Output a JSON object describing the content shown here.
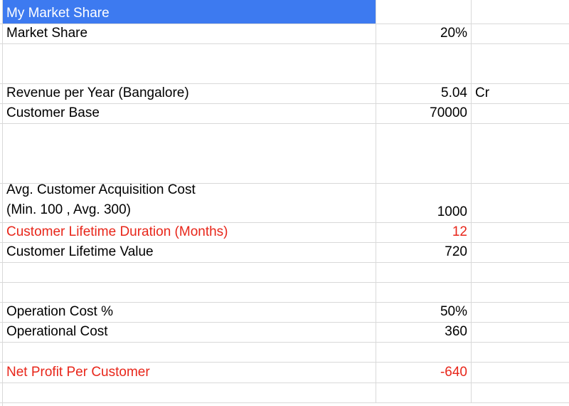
{
  "rows": {
    "market_share_header": {
      "label": "My Market Share"
    },
    "market_share": {
      "label": "Market Share",
      "value": "20%"
    },
    "revenue": {
      "label": "Revenue per Year (Bangalore)",
      "value": "5.04",
      "unit": "Cr"
    },
    "customer_base": {
      "label": "Customer Base",
      "value": "70000"
    },
    "cac": {
      "label_line1": "Avg. Customer Acquisition Cost",
      "label_line2": "(Min. 100 , Avg. 300)",
      "value": "1000"
    },
    "lifetime_duration": {
      "label": "Customer Lifetime Duration (Months)",
      "value": "12"
    },
    "lifetime_value": {
      "label": "Customer Lifetime Value",
      "value": "720"
    },
    "operation_cost_pct": {
      "label": "Operation Cost %",
      "value": "50%"
    },
    "operational_cost": {
      "label": "Operational Cost",
      "value": "360"
    },
    "net_profit": {
      "label": "Net Profit Per Customer",
      "value": "-640"
    }
  },
  "colors": {
    "selection": "#3d7af0",
    "highlight_text": "#e8261a",
    "gridline": "#d9d9d9"
  }
}
